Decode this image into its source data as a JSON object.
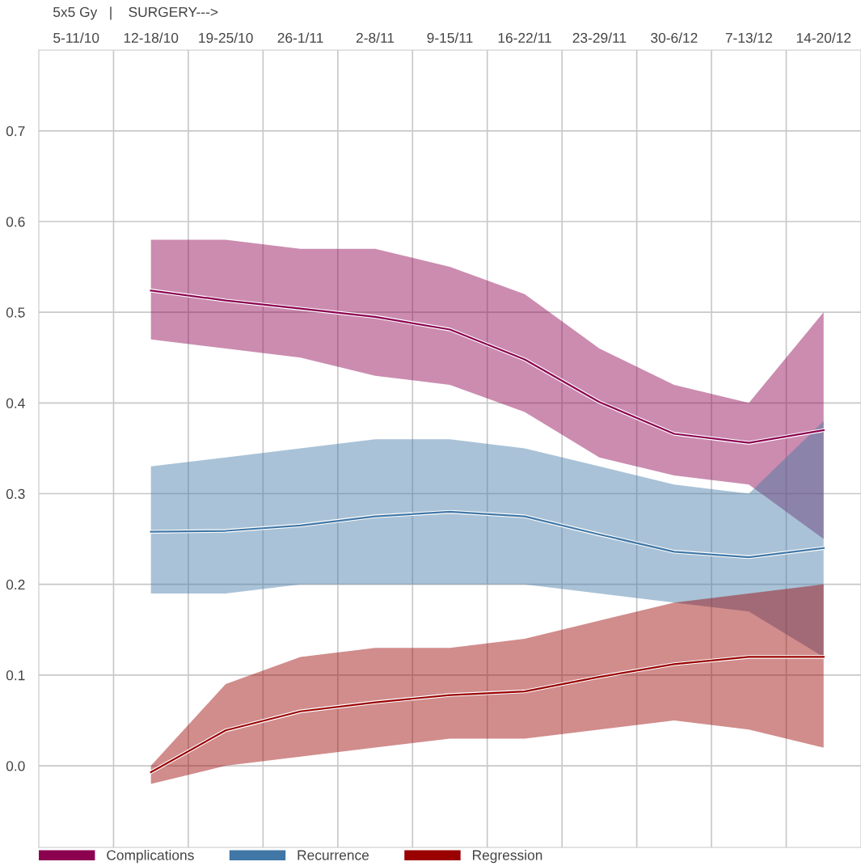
{
  "chart_data": {
    "type": "line",
    "annotations": [
      "5x5 Gy   |    SURGERY--->"
    ],
    "categories": [
      "5-11/10",
      "12-18/10",
      "19-25/10",
      "26-1/11",
      "2-8/11",
      "9-15/11",
      "16-22/11",
      "23-29/11",
      "30-6/12",
      "7-13/12",
      "14-20/12"
    ],
    "series": [
      {
        "name": "Complications",
        "color": "#8c0050",
        "values": [
          null,
          0.524,
          0.513,
          0.504,
          0.495,
          0.481,
          0.448,
          0.401,
          0.366,
          0.356,
          0.37
        ],
        "lower": [
          null,
          0.47,
          0.46,
          0.45,
          0.43,
          0.42,
          0.39,
          0.34,
          0.32,
          0.31,
          0.25
        ],
        "upper": [
          null,
          0.58,
          0.58,
          0.57,
          0.57,
          0.55,
          0.52,
          0.46,
          0.42,
          0.4,
          0.5
        ]
      },
      {
        "name": "Recurrence",
        "color": "#4077a6",
        "values": [
          null,
          0.258,
          0.259,
          0.265,
          0.275,
          0.28,
          0.275,
          0.255,
          0.236,
          0.23,
          0.24
        ],
        "lower": [
          null,
          0.19,
          0.19,
          0.2,
          0.2,
          0.2,
          0.2,
          0.19,
          0.18,
          0.17,
          0.12
        ],
        "upper": [
          null,
          0.33,
          0.34,
          0.35,
          0.36,
          0.36,
          0.35,
          0.33,
          0.31,
          0.3,
          0.38
        ]
      },
      {
        "name": "Regression",
        "color": "#9a0000",
        "values": [
          null,
          -0.007,
          0.039,
          0.06,
          0.07,
          0.078,
          0.082,
          0.098,
          0.112,
          0.12,
          0.12
        ],
        "lower": [
          null,
          -0.02,
          0.0,
          0.01,
          0.02,
          0.03,
          0.03,
          0.04,
          0.05,
          0.04,
          0.02
        ],
        "upper": [
          null,
          0.0,
          0.09,
          0.12,
          0.13,
          0.13,
          0.14,
          0.16,
          0.18,
          0.19,
          0.2
        ]
      }
    ],
    "ylim": [
      -0.09,
      0.789
    ],
    "yticks": [
      {
        "value": 0,
        "label": "0.0"
      },
      0.1,
      0.2,
      0.3,
      0.4,
      0.5,
      0.6,
      0.7
    ],
    "grid": true,
    "legend": "bottom"
  }
}
